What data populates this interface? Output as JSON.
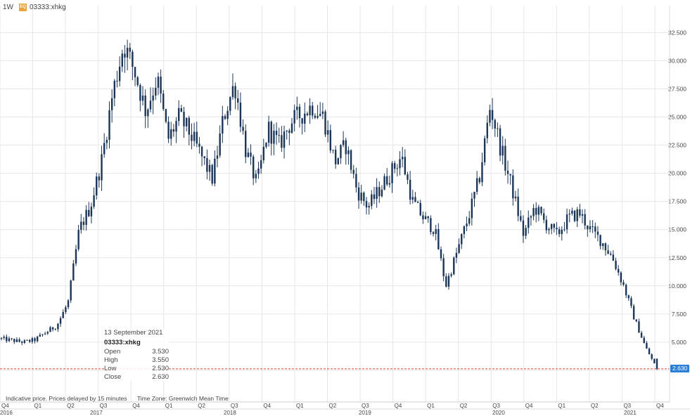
{
  "toolbar": {
    "interval": "1W",
    "symbol": "03333:xhkg",
    "badge_text": "EQ"
  },
  "info_box": {
    "date": "13 September 2021",
    "symbol": "03333:xhkg",
    "rows": [
      {
        "label": "Open",
        "value": "3.530"
      },
      {
        "label": "High",
        "value": "3.550"
      },
      {
        "label": "Low",
        "value": "2.530"
      },
      {
        "label": "Close",
        "value": "2.630"
      }
    ]
  },
  "footnote": {
    "delay": "Indicative price. Prices delayed by 15 minutes",
    "timezone": "Time Zone: Greenwich Mean Time"
  },
  "last_price_label": "2.630",
  "colors": {
    "candle": "#1c3557",
    "grid": "#e6e6e6",
    "last_line": "#e0402a",
    "last_badge": "#2a7fd4",
    "badge": "#e8a33a"
  },
  "chart_data": {
    "type": "candlestick",
    "title": "",
    "xlabel": "",
    "ylabel": "",
    "ylim": [
      0,
      35
    ],
    "grid": true,
    "y_axis_side": "right",
    "y_ticks": [
      "2.500",
      "5.000",
      "7.500",
      "10.000",
      "12.500",
      "15.000",
      "17.500",
      "20.000",
      "22.500",
      "25.000",
      "27.500",
      "30.000",
      "32.500"
    ],
    "x_quarters": [
      "Q4",
      "Q1",
      "Q2",
      "Q3",
      "Q4",
      "Q1",
      "Q2",
      "Q3",
      "Q4",
      "Q1",
      "Q2",
      "Q3",
      "Q4",
      "Q1",
      "Q2",
      "Q3",
      "Q4",
      "Q1",
      "Q2",
      "Q3",
      "Q4"
    ],
    "x_years": [
      "2016",
      "2017",
      "2018",
      "2019",
      "2020",
      "2021"
    ],
    "last_price": 2.63,
    "approximate_weekly_close_path": [
      {
        "date": "2016-10",
        "close": 5.3
      },
      {
        "date": "2016-12",
        "close": 5.0
      },
      {
        "date": "2017-01",
        "close": 5.2
      },
      {
        "date": "2017-03",
        "close": 6.5
      },
      {
        "date": "2017-04",
        "close": 8.5
      },
      {
        "date": "2017-05",
        "close": 15.0
      },
      {
        "date": "2017-06",
        "close": 17.0
      },
      {
        "date": "2017-07",
        "close": 21.0
      },
      {
        "date": "2017-08",
        "close": 27.0
      },
      {
        "date": "2017-09",
        "close": 31.5
      },
      {
        "date": "2017-10",
        "close": 29.0
      },
      {
        "date": "2017-11",
        "close": 25.5
      },
      {
        "date": "2017-12",
        "close": 28.5
      },
      {
        "date": "2018-01",
        "close": 23.0
      },
      {
        "date": "2018-02",
        "close": 25.0
      },
      {
        "date": "2018-03",
        "close": 23.5
      },
      {
        "date": "2018-05",
        "close": 19.5
      },
      {
        "date": "2018-06",
        "close": 25.0
      },
      {
        "date": "2018-07",
        "close": 28.0
      },
      {
        "date": "2018-08",
        "close": 22.0
      },
      {
        "date": "2018-09",
        "close": 19.0
      },
      {
        "date": "2018-10",
        "close": 24.0
      },
      {
        "date": "2018-11",
        "close": 22.5
      },
      {
        "date": "2018-12",
        "close": 24.5
      },
      {
        "date": "2019-02",
        "close": 26.0
      },
      {
        "date": "2019-03",
        "close": 25.0
      },
      {
        "date": "2019-04",
        "close": 21.0
      },
      {
        "date": "2019-05",
        "close": 22.5
      },
      {
        "date": "2019-06",
        "close": 18.5
      },
      {
        "date": "2019-07",
        "close": 17.0
      },
      {
        "date": "2019-08",
        "close": 18.5
      },
      {
        "date": "2019-09",
        "close": 20.0
      },
      {
        "date": "2019-10",
        "close": 21.5
      },
      {
        "date": "2019-11",
        "close": 17.5
      },
      {
        "date": "2019-12",
        "close": 16.0
      },
      {
        "date": "2020-01",
        "close": 15.0
      },
      {
        "date": "2020-02",
        "close": 10.0
      },
      {
        "date": "2020-03",
        "close": 13.0
      },
      {
        "date": "2020-04",
        "close": 16.0
      },
      {
        "date": "2020-05",
        "close": 19.5
      },
      {
        "date": "2020-06",
        "close": 26.0
      },
      {
        "date": "2020-07",
        "close": 22.0
      },
      {
        "date": "2020-08",
        "close": 18.5
      },
      {
        "date": "2020-09",
        "close": 14.5
      },
      {
        "date": "2020-10",
        "close": 17.0
      },
      {
        "date": "2020-11",
        "close": 15.5
      },
      {
        "date": "2020-12",
        "close": 14.5
      },
      {
        "date": "2021-01",
        "close": 16.0
      },
      {
        "date": "2021-02",
        "close": 16.5
      },
      {
        "date": "2021-03",
        "close": 15.0
      },
      {
        "date": "2021-04",
        "close": 14.0
      },
      {
        "date": "2021-05",
        "close": 12.5
      },
      {
        "date": "2021-06",
        "close": 10.0
      },
      {
        "date": "2021-07",
        "close": 7.0
      },
      {
        "date": "2021-08",
        "close": 4.5
      },
      {
        "date": "2021-09",
        "close": 2.63
      }
    ]
  }
}
